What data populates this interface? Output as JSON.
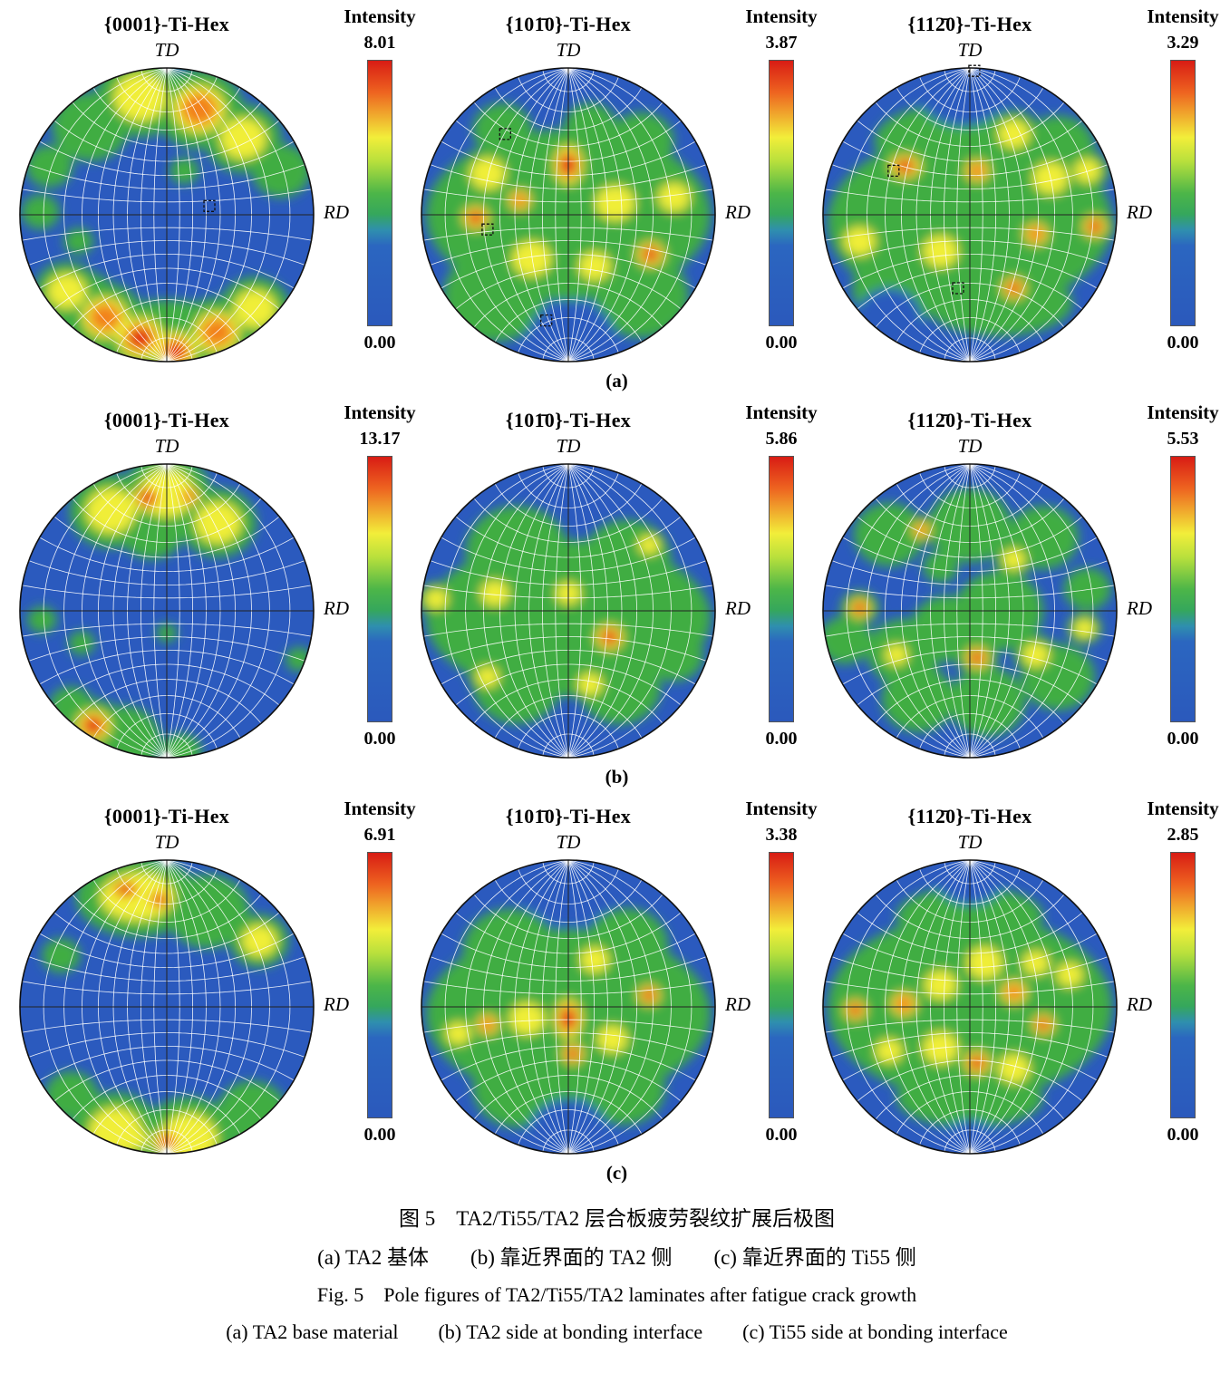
{
  "colors": {
    "map_blue": "#2b5abe",
    "map_green": "#41ad43",
    "map_yellow": "#f0ee39",
    "map_orange": "#f2821f",
    "map_red": "#e02315",
    "grid": "#ffffff"
  },
  "rows": [
    {
      "label": "(a)",
      "panels": [
        {
          "title": "{0001}-Ti-Hex",
          "axis_top": "TD",
          "axis_right": "RD",
          "intensity_label": "Intensity",
          "max": "8.01",
          "min": "0.00",
          "hotspots": [
            [
              -0.52,
              -0.6,
              0.26,
              0.5
            ],
            [
              -0.18,
              -0.8,
              0.3,
              0.62
            ],
            [
              0.22,
              -0.72,
              0.3,
              0.78
            ],
            [
              0.52,
              -0.52,
              0.26,
              0.6
            ],
            [
              0.78,
              -0.3,
              0.2,
              0.45
            ],
            [
              -0.8,
              -0.33,
              0.16,
              0.4
            ],
            [
              -0.86,
              -0.02,
              0.13,
              0.42
            ],
            [
              0.12,
              -0.3,
              0.1,
              0.45
            ],
            [
              -0.6,
              0.18,
              0.1,
              0.35
            ],
            [
              0.0,
              0.88,
              0.6,
              0.45,
              0.5
            ],
            [
              -0.6,
              0.65,
              0.3,
              0.45
            ],
            [
              -0.68,
              0.52,
              0.22,
              0.55
            ],
            [
              -0.42,
              0.7,
              0.26,
              0.88
            ],
            [
              -0.18,
              0.84,
              0.26,
              1.0
            ],
            [
              0.06,
              0.93,
              0.24,
              0.92
            ],
            [
              0.34,
              0.8,
              0.26,
              0.8
            ],
            [
              0.6,
              0.64,
              0.24,
              0.6
            ]
          ],
          "markers": [
            [
              0.29,
              -0.06
            ]
          ]
        },
        {
          "title": "{101̄0}-Ti-Hex",
          "axis_top": "TD",
          "axis_right": "RD",
          "intensity_label": "Intensity",
          "max": "3.87",
          "min": "0.00",
          "hotspots": [
            [
              0.0,
              0.0,
              0.97,
              0.45,
              0.6
            ],
            [
              -0.5,
              0.55,
              0.35,
              0.45
            ],
            [
              0.5,
              0.55,
              0.32,
              0.45
            ],
            [
              -0.45,
              -0.58,
              0.2,
              0.5
            ],
            [
              0.5,
              -0.5,
              0.22,
              0.5
            ],
            [
              0.15,
              -0.6,
              0.18,
              0.45
            ],
            [
              0.02,
              0.85,
              0.3,
              -1
            ],
            [
              -0.55,
              -0.28,
              0.2,
              0.62
            ],
            [
              0.32,
              -0.08,
              0.22,
              0.6
            ],
            [
              0.72,
              -0.12,
              0.18,
              0.6
            ],
            [
              -0.25,
              0.3,
              0.22,
              0.6
            ],
            [
              0.18,
              0.35,
              0.18,
              0.55
            ],
            [
              -0.33,
              -0.1,
              0.13,
              0.78
            ],
            [
              0.0,
              -0.34,
              0.17,
              1.0,
              1.3
            ],
            [
              -0.63,
              0.02,
              0.15,
              0.95
            ],
            [
              0.56,
              0.27,
              0.16,
              0.92
            ]
          ],
          "markers": [
            [
              -0.43,
              -0.55
            ],
            [
              -0.55,
              0.1
            ],
            [
              -0.15,
              0.72
            ]
          ]
        },
        {
          "title": "{112̄0}-Ti-Hex",
          "axis_top": "TD",
          "axis_right": "RD",
          "intensity_label": "Intensity",
          "max": "3.29",
          "min": "0.00",
          "hotspots": [
            [
              0.0,
              0.05,
              0.97,
              0.45,
              0.62
            ],
            [
              -0.15,
              -0.5,
              0.5,
              0.45,
              0.5
            ],
            [
              0.2,
              0.6,
              0.5,
              0.45,
              0.45
            ],
            [
              -0.5,
              0.5,
              0.3,
              0.45
            ],
            [
              0.6,
              -0.45,
              0.25,
              0.5
            ],
            [
              -0.05,
              -0.9,
              0.33,
              -1
            ],
            [
              -0.55,
              0.7,
              0.22,
              -1
            ],
            [
              0.55,
              -0.25,
              0.2,
              0.65
            ],
            [
              -0.75,
              0.18,
              0.18,
              0.6
            ],
            [
              0.3,
              -0.55,
              0.18,
              0.58
            ],
            [
              -0.2,
              0.25,
              0.2,
              0.55
            ],
            [
              0.8,
              -0.3,
              0.15,
              0.55
            ],
            [
              0.45,
              0.13,
              0.14,
              0.8
            ],
            [
              0.05,
              -0.3,
              0.14,
              0.8
            ],
            [
              -0.44,
              -0.33,
              0.18,
              1.0,
              0.75
            ],
            [
              0.85,
              0.08,
              0.14,
              0.95
            ],
            [
              0.3,
              0.5,
              0.14,
              0.92
            ]
          ],
          "markers": [
            [
              0.03,
              -0.98
            ],
            [
              -0.52,
              -0.3
            ],
            [
              -0.08,
              0.5
            ]
          ]
        }
      ]
    },
    {
      "label": "(b)",
      "panels": [
        {
          "title": "{0001}-Ti-Hex",
          "axis_top": "TD",
          "axis_right": "RD",
          "intensity_label": "Intensity",
          "max": "13.17",
          "min": "0.00",
          "hotspots": [
            [
              -0.38,
              -0.68,
              0.28,
              0.55
            ],
            [
              0.0,
              -0.8,
              0.3,
              0.6
            ],
            [
              0.35,
              -0.6,
              0.26,
              0.55
            ],
            [
              -0.1,
              -0.55,
              0.22,
              0.5
            ],
            [
              -0.13,
              -0.77,
              0.17,
              1.0
            ],
            [
              0.15,
              -0.78,
              0.12,
              0.8
            ],
            [
              -0.85,
              0.06,
              0.1,
              0.4
            ],
            [
              -0.58,
              0.22,
              0.09,
              0.38
            ],
            [
              0.0,
              0.15,
              0.07,
              0.35
            ],
            [
              0.9,
              0.33,
              0.09,
              0.38
            ],
            [
              -0.5,
              0.78,
              0.2,
              0.92
            ],
            [
              -0.3,
              0.88,
              0.26,
              0.5
            ],
            [
              -0.65,
              0.65,
              0.15,
              0.5
            ],
            [
              0.1,
              0.96,
              0.14,
              0.45
            ]
          ],
          "markers": []
        },
        {
          "title": "{101̄0}-Ti-Hex",
          "axis_top": "TD",
          "axis_right": "RD",
          "intensity_label": "Intensity",
          "max": "5.86",
          "min": "0.00",
          "hotspots": [
            [
              0.0,
              0.05,
              0.97,
              0.45,
              0.55
            ],
            [
              -0.35,
              -0.4,
              0.35,
              0.45
            ],
            [
              0.4,
              -0.35,
              0.3,
              0.42
            ],
            [
              -0.35,
              0.5,
              0.3,
              0.45
            ],
            [
              0.35,
              0.52,
              0.28,
              0.42
            ],
            [
              0.72,
              0.3,
              0.2,
              0.4
            ],
            [
              -0.9,
              -0.08,
              0.13,
              0.68
            ],
            [
              -0.5,
              -0.12,
              0.16,
              0.6
            ],
            [
              0.0,
              -0.12,
              0.14,
              0.55
            ],
            [
              0.55,
              -0.45,
              0.12,
              0.55
            ],
            [
              -0.55,
              0.45,
              0.13,
              0.58
            ],
            [
              0.15,
              0.5,
              0.14,
              0.55
            ],
            [
              0.28,
              0.18,
              0.16,
              1.0
            ]
          ],
          "markers": []
        },
        {
          "title": "{112̄0}-Ti-Hex",
          "axis_top": "TD",
          "axis_right": "RD",
          "intensity_label": "Intensity",
          "max": "5.53",
          "min": "0.00",
          "hotspots": [
            [
              -0.55,
              -0.52,
              0.24,
              0.45
            ],
            [
              0.0,
              -0.58,
              0.28,
              0.45
            ],
            [
              0.5,
              -0.5,
              0.24,
              0.45
            ],
            [
              -0.85,
              0.2,
              0.18,
              0.42
            ],
            [
              -0.45,
              0.28,
              0.25,
              0.5
            ],
            [
              0.2,
              0.0,
              0.3,
              0.5
            ],
            [
              -0.15,
              0.12,
              0.25,
              0.48
            ],
            [
              0.6,
              0.45,
              0.25,
              0.45
            ],
            [
              -0.35,
              0.6,
              0.25,
              0.45
            ],
            [
              0.12,
              0.62,
              0.26,
              0.48
            ],
            [
              0.8,
              -0.15,
              0.16,
              0.42
            ],
            [
              0.45,
              0.3,
              0.15,
              0.65
            ],
            [
              -0.5,
              0.3,
              0.13,
              0.6
            ],
            [
              0.3,
              -0.35,
              0.13,
              0.55
            ],
            [
              0.78,
              0.12,
              0.12,
              0.58
            ],
            [
              -0.2,
              -0.3,
              0.12,
              0.5
            ],
            [
              -0.33,
              -0.55,
              0.11,
              0.8
            ],
            [
              -0.75,
              -0.02,
              0.13,
              1.0
            ],
            [
              0.05,
              0.32,
              0.14,
              0.95
            ]
          ],
          "markers": []
        }
      ]
    },
    {
      "label": "(c)",
      "panels": [
        {
          "title": "{0001}-Ti-Hex",
          "axis_top": "TD",
          "axis_right": "RD",
          "intensity_label": "Intensity",
          "max": "6.91",
          "min": "0.00",
          "hotspots": [
            [
              -0.2,
              -0.75,
              0.42,
              0.55,
              0.65
            ],
            [
              0.28,
              -0.65,
              0.28,
              0.5
            ],
            [
              -0.28,
              -0.8,
              0.2,
              1.0,
              0.6
            ],
            [
              -0.05,
              -0.73,
              0.14,
              0.9
            ],
            [
              0.63,
              -0.45,
              0.2,
              0.62
            ],
            [
              -0.72,
              -0.35,
              0.13,
              0.42
            ],
            [
              -0.35,
              0.85,
              0.3,
              0.55
            ],
            [
              0.15,
              0.9,
              0.32,
              0.55
            ],
            [
              0.58,
              0.72,
              0.24,
              0.5
            ],
            [
              -0.65,
              0.6,
              0.18,
              0.42
            ],
            [
              0.0,
              0.92,
              0.16,
              1.0
            ],
            [
              -0.2,
              0.9,
              0.12,
              0.7
            ]
          ],
          "markers": []
        },
        {
          "title": "{101̄0}-Ti-Hex",
          "axis_top": "TD",
          "axis_right": "RD",
          "intensity_label": "Intensity",
          "max": "3.38",
          "min": "0.00",
          "hotspots": [
            [
              0.0,
              0.05,
              0.97,
              0.45,
              0.6
            ],
            [
              -0.4,
              -0.38,
              0.32,
              0.45
            ],
            [
              0.4,
              -0.42,
              0.28,
              0.42
            ],
            [
              -0.35,
              0.55,
              0.3,
              0.45
            ],
            [
              0.38,
              0.55,
              0.28,
              0.45
            ],
            [
              0.0,
              -0.85,
              0.32,
              -1
            ],
            [
              0.0,
              0.88,
              0.28,
              -1
            ],
            [
              -0.28,
              0.08,
              0.2,
              0.65
            ],
            [
              0.3,
              0.22,
              0.17,
              0.6
            ],
            [
              -0.75,
              0.18,
              0.14,
              0.55
            ],
            [
              0.18,
              -0.32,
              0.16,
              0.55
            ],
            [
              0.65,
              0.3,
              0.13,
              0.52
            ],
            [
              -0.55,
              0.12,
              0.13,
              0.8
            ],
            [
              0.0,
              0.08,
              0.16,
              1.0,
              1.4
            ],
            [
              0.03,
              0.32,
              0.13,
              0.95
            ],
            [
              0.55,
              -0.08,
              0.13,
              0.95
            ]
          ],
          "markers": []
        },
        {
          "title": "{112̄0}-Ti-Hex",
          "axis_top": "TD",
          "axis_right": "RD",
          "intensity_label": "Intensity",
          "max": "2.85",
          "min": "0.00",
          "hotspots": [
            [
              0.0,
              0.0,
              0.97,
              0.5,
              0.65
            ],
            [
              0.0,
              -0.62,
              0.5,
              0.45,
              0.4
            ],
            [
              0.0,
              0.62,
              0.5,
              0.45,
              0.4
            ],
            [
              0.0,
              -0.92,
              0.25,
              -1
            ],
            [
              0.0,
              0.95,
              0.2,
              -1
            ],
            [
              0.1,
              -0.3,
              0.2,
              0.68
            ],
            [
              -0.2,
              -0.15,
              0.18,
              0.65
            ],
            [
              -0.2,
              0.28,
              0.2,
              0.65
            ],
            [
              0.3,
              0.42,
              0.18,
              0.62
            ],
            [
              0.68,
              -0.22,
              0.15,
              0.6
            ],
            [
              -0.55,
              0.3,
              0.15,
              0.6
            ],
            [
              0.45,
              -0.3,
              0.15,
              0.6
            ],
            [
              0.3,
              -0.1,
              0.15,
              0.8
            ],
            [
              -0.45,
              -0.02,
              0.15,
              0.88
            ],
            [
              -0.78,
              0.02,
              0.13,
              0.95
            ],
            [
              0.05,
              0.38,
              0.15,
              1.0
            ],
            [
              0.5,
              0.12,
              0.13,
              0.9
            ]
          ],
          "markers": []
        }
      ]
    }
  ],
  "captions": [
    "图 5　TA2/Ti55/TA2 层合板疲劳裂纹扩展后极图",
    "(a) TA2 基体　　(b) 靠近界面的 TA2 侧　　(c) 靠近界面的 Ti55 侧",
    "Fig. 5　Pole figures of TA2/Ti55/TA2 laminates after fatigue crack growth",
    "(a) TA2 base material　　(b) TA2 side at bonding interface　　(c) Ti55 side at bonding interface"
  ]
}
